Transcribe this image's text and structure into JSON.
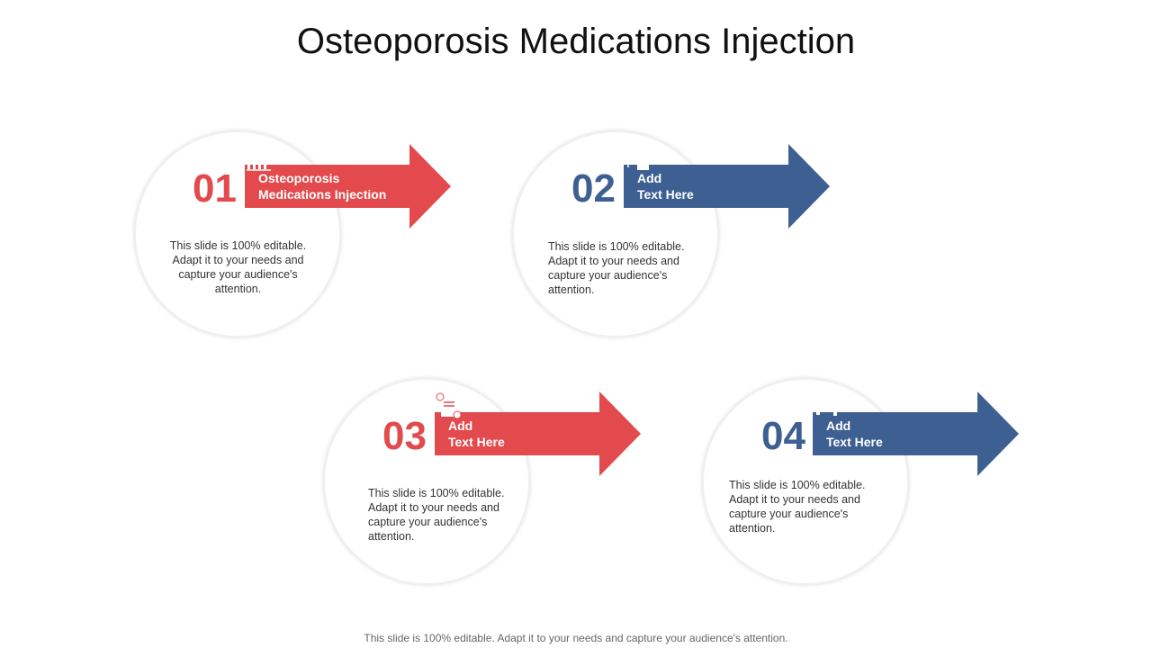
{
  "title": "Osteoporosis Medications Injection",
  "colors": {
    "red": "#e24a4d",
    "blue": "#3e5f92"
  },
  "steps": [
    {
      "number": "01",
      "label_line1": "Osteoporosis",
      "label_line2": "Medications Injection",
      "icon": "growth-chart-icon",
      "desc": "This slide is 100% editable. Adapt it to your needs and capture your audience's attention."
    },
    {
      "number": "02",
      "label_line1": "Add",
      "label_line2": "Text Here",
      "icon": "money-bank-transfer-icon",
      "desc": "This slide is 100% editable. Adapt it to your needs and capture your audience's attention."
    },
    {
      "number": "03",
      "label_line1": "Add",
      "label_line2": "Text Here",
      "icon": "certificate-gear-icon",
      "desc": "This slide is 100% editable. Adapt it to your needs and capture your audience's attention."
    },
    {
      "number": "04",
      "label_line1": "Add",
      "label_line2": "Text Here",
      "icon": "people-group-icon",
      "desc": "This slide is 100% editable. Adapt it to your needs and capture your audience's attention."
    }
  ],
  "footer": "This slide is 100% editable. Adapt it to your needs and capture your audience's attention."
}
